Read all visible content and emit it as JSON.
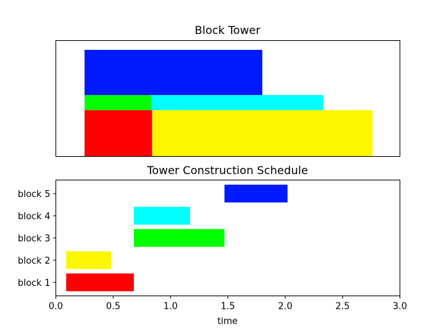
{
  "chart_data": [
    {
      "type": "bar",
      "title": "Block Tower",
      "xlabel": "",
      "ylabel": "",
      "axes_visible": false,
      "blocks": [
        {
          "name": "block 1",
          "x_start": 0.25,
          "x_end": 0.84,
          "y_bottom": 0.0,
          "y_top": 0.4,
          "color": "#ff0000"
        },
        {
          "name": "block 2",
          "x_start": 0.84,
          "x_end": 2.76,
          "y_bottom": 0.0,
          "y_top": 0.4,
          "color": "#fbf700"
        },
        {
          "name": "block 3",
          "x_start": 0.25,
          "x_end": 0.83,
          "y_bottom": 0.4,
          "y_top": 0.53,
          "color": "#00ff00"
        },
        {
          "name": "block 4",
          "x_start": 0.83,
          "x_end": 2.33,
          "y_bottom": 0.4,
          "y_top": 0.53,
          "color": "#00ffff"
        },
        {
          "name": "block 5",
          "x_start": 0.25,
          "x_end": 1.8,
          "y_bottom": 0.53,
          "y_top": 0.92,
          "color": "#0019ff"
        }
      ],
      "xlim": [
        0.0,
        3.0
      ],
      "ylim": [
        0.0,
        1.0
      ]
    },
    {
      "type": "bar",
      "orientation": "horizontal",
      "title": "Tower Construction Schedule",
      "xlabel": "time",
      "ylabel": "",
      "categories": [
        "block 1",
        "block 2",
        "block 3",
        "block 4",
        "block 5"
      ],
      "starts": [
        0.09,
        0.09,
        0.68,
        0.68,
        1.47
      ],
      "ends": [
        0.68,
        0.48,
        1.47,
        1.17,
        2.02
      ],
      "colors": [
        "#ff0000",
        "#fbf700",
        "#00ff00",
        "#00ffff",
        "#0019ff"
      ],
      "xlim": [
        0.0,
        3.0
      ],
      "xticks": [
        0.0,
        0.5,
        1.0,
        1.5,
        2.0,
        2.5,
        3.0
      ],
      "xtick_labels": [
        "0.0",
        "0.5",
        "1.0",
        "1.5",
        "2.0",
        "2.5",
        "3.0"
      ],
      "grid": false,
      "legend": "none"
    }
  ]
}
